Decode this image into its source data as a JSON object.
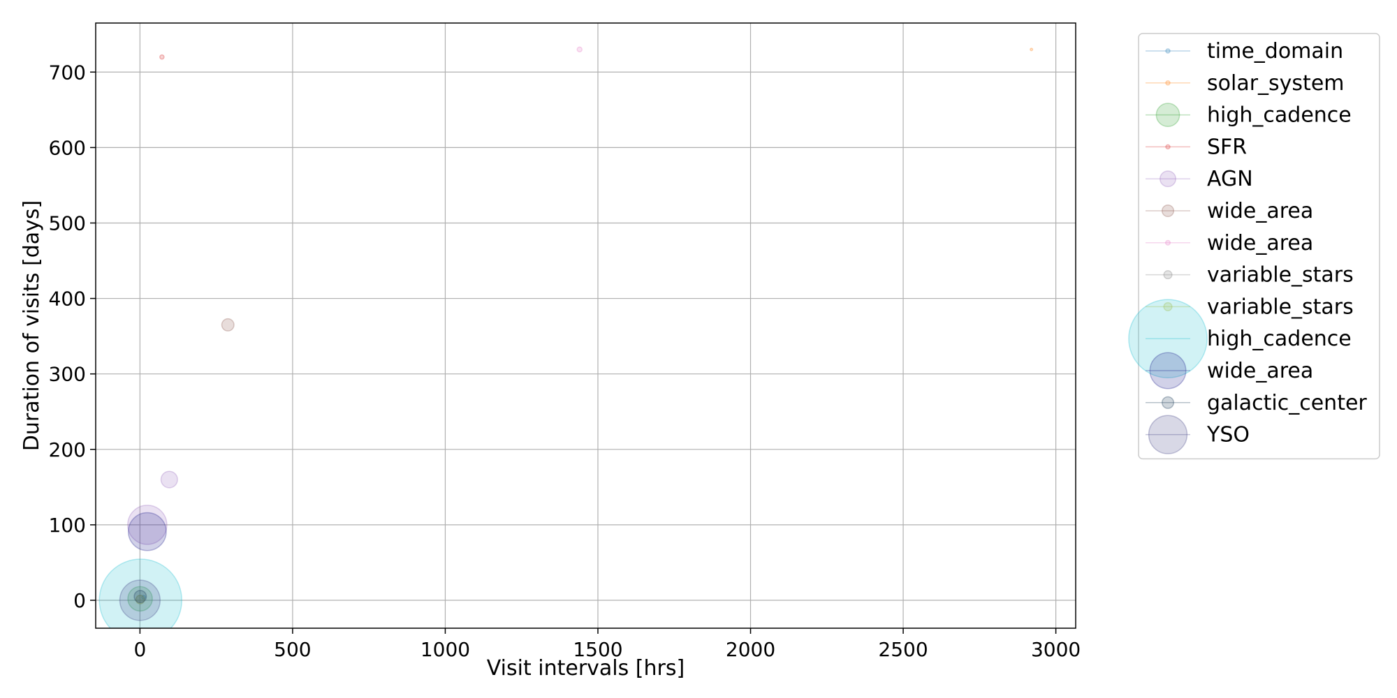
{
  "chart_data": {
    "type": "scatter",
    "xlabel": "Visit intervals [hrs]",
    "ylabel": "Duration of visits [days]",
    "xlim": [
      -145,
      3065
    ],
    "ylim": [
      -37,
      765
    ],
    "xticks": [
      0,
      500,
      1000,
      1500,
      2000,
      2500,
      3000
    ],
    "yticks": [
      0,
      100,
      200,
      300,
      400,
      500,
      600,
      700
    ],
    "grid": true,
    "legend_position": "outside-right",
    "marker_alpha": 0.2,
    "series": [
      {
        "name": "time_domain",
        "color": "#1f77b4",
        "points": [
          {
            "x": 12,
            "y": 4,
            "size": 6
          }
        ]
      },
      {
        "name": "solar_system",
        "color": "#ff7f0e",
        "points": [
          {
            "x": 2920,
            "y": 730,
            "size": 4
          }
        ]
      },
      {
        "name": "high_cadence",
        "color": "#2ca02c",
        "points": [
          {
            "x": 0.5,
            "y": 2,
            "size": 40
          }
        ]
      },
      {
        "name": "SFR",
        "color": "#d62728",
        "points": [
          {
            "x": 72,
            "y": 720,
            "size": 7
          }
        ]
      },
      {
        "name": "AGN",
        "color": "#9467bd",
        "points": [
          {
            "x": 96,
            "y": 160,
            "size": 27
          },
          {
            "x": 24,
            "y": 100,
            "size": 64
          }
        ]
      },
      {
        "name": "wide_area",
        "color": "#8c564b",
        "points": [
          {
            "x": 288,
            "y": 365,
            "size": 20
          }
        ]
      },
      {
        "name": "wide_area",
        "color": "#e377c2",
        "points": [
          {
            "x": 1440,
            "y": 730,
            "size": 8
          }
        ]
      },
      {
        "name": "variable_stars",
        "color": "#7f7f7f",
        "points": [
          {
            "x": 1,
            "y": 1,
            "size": 14
          }
        ]
      },
      {
        "name": "variable_stars",
        "color": "#bcbd22",
        "points": [
          {
            "x": 0.5,
            "y": 1,
            "size": 14
          }
        ]
      },
      {
        "name": "high_cadence",
        "color": "#17becf",
        "points": [
          {
            "x": 2,
            "y": 0,
            "size": 135
          }
        ]
      },
      {
        "name": "wide_area",
        "color": "#1a1a8c",
        "points": [
          {
            "x": 24,
            "y": 91,
            "size": 62
          }
        ]
      },
      {
        "name": "galactic_center",
        "color": "#0f3350",
        "points": [
          {
            "x": 1,
            "y": 5,
            "size": 20
          }
        ]
      },
      {
        "name": "YSO",
        "color": "#3a3a80",
        "points": [
          {
            "x": 0,
            "y": 0,
            "size": 66
          }
        ]
      }
    ]
  }
}
